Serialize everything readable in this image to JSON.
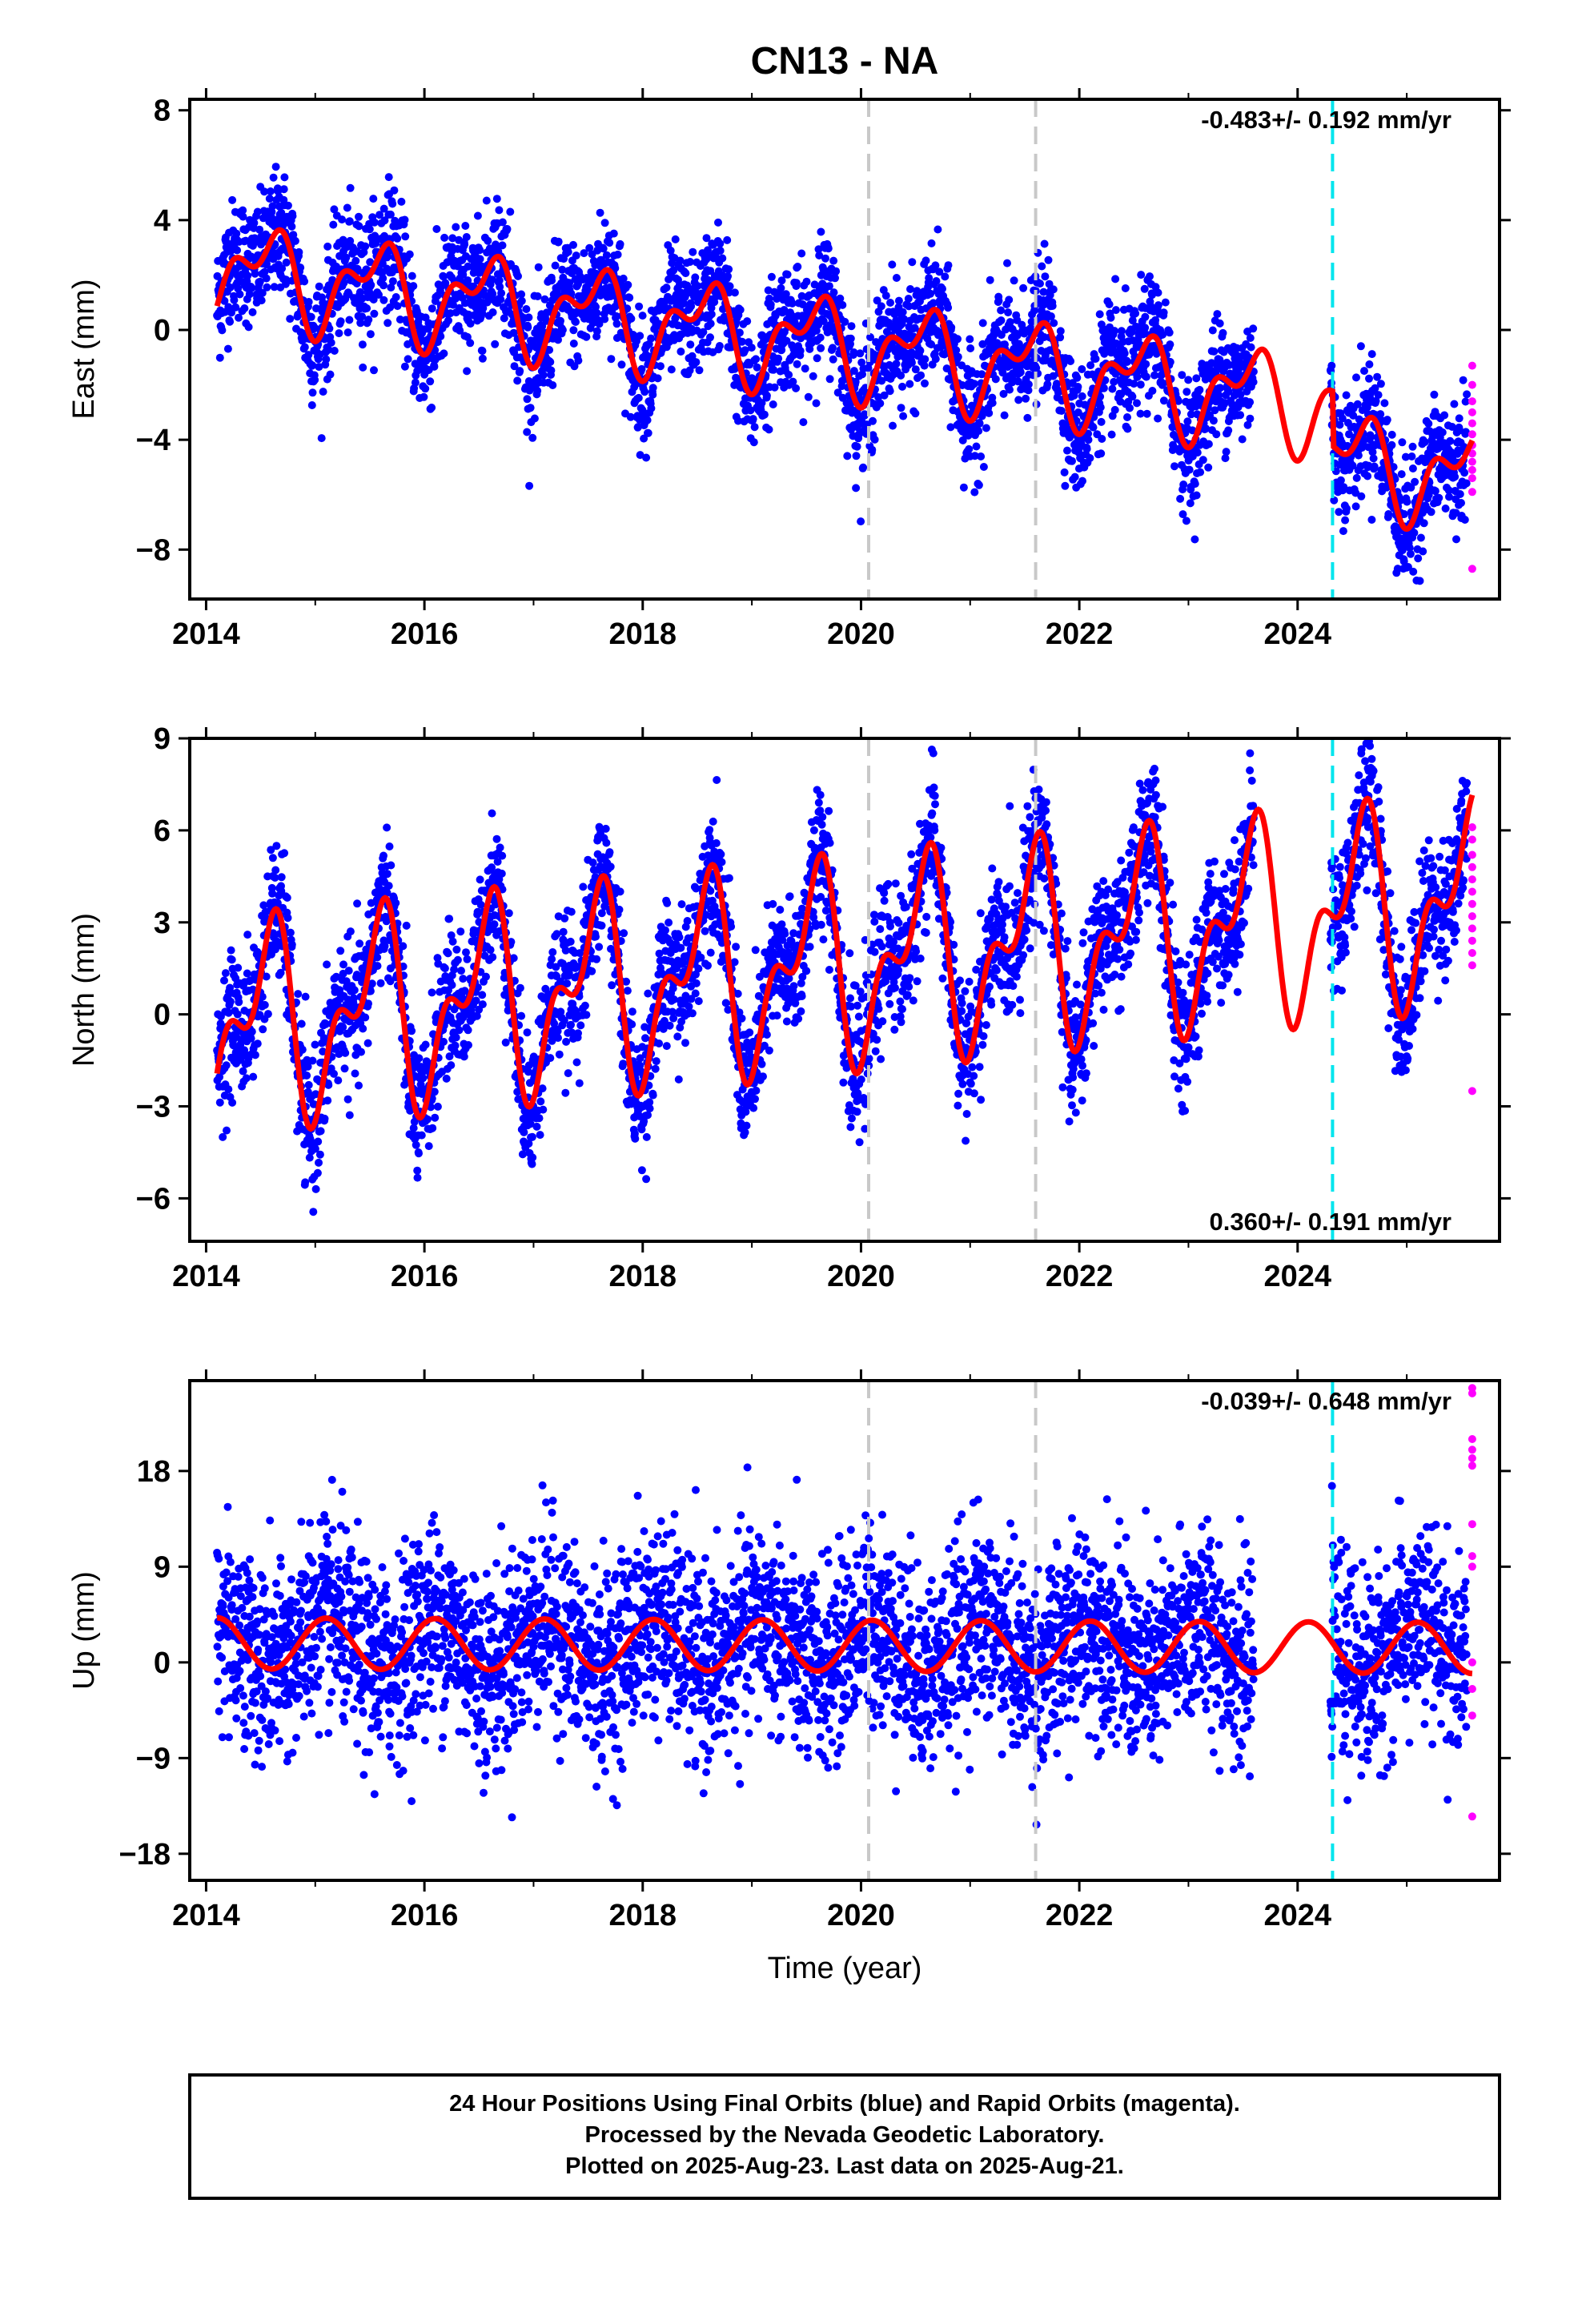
{
  "figure": {
    "title": "CN13 - NA",
    "xlabel": "Time (year)",
    "footer_lines": [
      "24 Hour Positions Using Final Orbits (blue) and Rapid Orbits (magenta).",
      "Processed by the Nevada Geodetic Laboratory.",
      "Plotted on 2025-Aug-23. Last data on 2025-Aug-21."
    ]
  },
  "colors": {
    "final_orbit": "#0000ff",
    "rapid_orbit": "#ff00ff",
    "model_fit": "#ff0000",
    "equipment_change": "#c8c8c8",
    "earthquake_or_offset": "#00e5ee",
    "frame": "#000000"
  },
  "chart_data": [
    {
      "type": "scatter",
      "ylabel": "East (mm)",
      "rate_text": "-0.483+/- 0.192 mm/yr",
      "rate_position": "top-right",
      "x_range": [
        2013.85,
        2025.85
      ],
      "y_range": [
        -9.8,
        8.4
      ],
      "x_ticks": [
        "2014",
        "2016",
        "2018",
        "2020",
        "2022",
        "2024"
      ],
      "y_ticks": [
        "8",
        "4",
        "0",
        "−4",
        "−8"
      ],
      "y_tick_values": [
        8,
        4,
        0,
        -4,
        -8
      ],
      "grid": false,
      "vertical_lines": [
        {
          "x": 2020.07,
          "style": "gray-dashed"
        },
        {
          "x": 2021.6,
          "style": "gray-dashed"
        },
        {
          "x": 2024.32,
          "style": "cyan-dashed"
        }
      ],
      "data_gap": [
        2023.6,
        2024.3
      ],
      "model": {
        "rate": -0.483,
        "amp1": 1.4,
        "phase1": 0.3,
        "amp2": 0.9,
        "phase2": 0.6,
        "offsets": [
          {
            "x": 2024.32,
            "dy": -2.0
          }
        ],
        "intercept_year": 2014.1,
        "intercept": 2.2,
        "noise": 1.1
      },
      "rapid_points": [
        -1.3,
        -2.0,
        -2.6,
        -3.0,
        -3.4,
        -3.8,
        -4.2,
        -4.5,
        -4.8,
        -5.1,
        -5.4,
        -5.9,
        -8.7
      ]
    },
    {
      "type": "scatter",
      "ylabel": "North (mm)",
      "rate_text": "0.360+/- 0.191 mm/yr",
      "rate_position": "bottom-right",
      "x_range": [
        2013.85,
        2025.85
      ],
      "y_range": [
        -7.4,
        9.0
      ],
      "x_ticks": [
        "2014",
        "2016",
        "2018",
        "2020",
        "2022",
        "2024"
      ],
      "y_ticks": [
        "9",
        "6",
        "3",
        "0",
        "−3",
        "−6"
      ],
      "y_tick_values": [
        9,
        6,
        3,
        0,
        -3,
        -6
      ],
      "grid": false,
      "vertical_lines": [
        {
          "x": 2020.07,
          "style": "gray-dashed"
        },
        {
          "x": 2021.6,
          "style": "gray-dashed"
        },
        {
          "x": 2024.32,
          "style": "cyan-dashed"
        }
      ],
      "data_gap": [
        2023.6,
        2024.3
      ],
      "model": {
        "rate": 0.36,
        "amp1": 2.6,
        "phase1": 0.3,
        "amp2": 1.6,
        "phase2": 0.55,
        "offsets": [],
        "intercept_year": 2014.1,
        "intercept": -0.4,
        "noise": 1.1
      },
      "rapid_points": [
        6.1,
        5.7,
        5.2,
        4.8,
        4.4,
        4.0,
        3.6,
        3.2,
        2.8,
        2.4,
        2.0,
        1.6,
        -2.5
      ]
    },
    {
      "type": "scatter",
      "ylabel": "Up (mm)",
      "rate_text": "-0.039+/- 0.648 mm/yr",
      "rate_position": "top-right",
      "x_range": [
        2013.85,
        2025.85
      ],
      "y_range": [
        -20.5,
        26.5
      ],
      "x_ticks": [
        "2014",
        "2016",
        "2018",
        "2020",
        "2022",
        "2024"
      ],
      "y_ticks": [
        "18",
        "9",
        "0",
        "−9",
        "−18"
      ],
      "y_tick_values": [
        18,
        9,
        0,
        -9,
        -18
      ],
      "grid": false,
      "vertical_lines": [
        {
          "x": 2020.07,
          "style": "gray-dashed"
        },
        {
          "x": 2021.6,
          "style": "gray-dashed"
        },
        {
          "x": 2024.32,
          "style": "cyan-dashed"
        }
      ],
      "data_gap": [
        2023.6,
        2024.3
      ],
      "model": {
        "rate": -0.039,
        "amp1": 2.4,
        "phase1": 0.85,
        "amp2": 0.0,
        "phase2": 0.0,
        "offsets": [],
        "intercept_year": 2014.1,
        "intercept": 1.8,
        "noise": 4.6
      },
      "rapid_points": [
        25.8,
        25.3,
        21.0,
        20.0,
        19.2,
        18.5,
        13.0,
        10.0,
        9.0,
        0.0,
        -2.5,
        -5.0,
        -14.5
      ]
    }
  ]
}
